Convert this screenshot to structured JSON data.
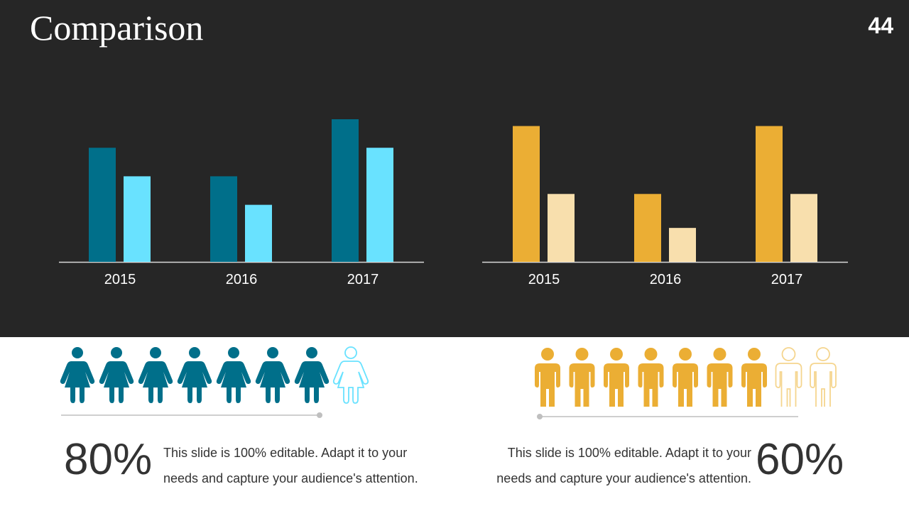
{
  "slide": {
    "title": "Comparison",
    "page_number": "44"
  },
  "chart_data": [
    {
      "type": "bar",
      "categories": [
        "2015",
        "2016",
        "2017"
      ],
      "series": [
        {
          "values": [
            4,
            3,
            5
          ]
        },
        {
          "values": [
            3,
            2,
            4
          ]
        }
      ],
      "ylim": [
        0,
        5
      ],
      "colors": [
        "#006f8a",
        "#69e2ff"
      ],
      "grid": false
    },
    {
      "type": "bar",
      "categories": [
        "2015",
        "2016",
        "2017"
      ],
      "series": [
        {
          "values": [
            4,
            2,
            4
          ]
        },
        {
          "values": [
            2,
            1,
            2
          ]
        }
      ],
      "ylim": [
        0,
        4.2
      ],
      "colors": [
        "#ebae34",
        "#f8dfad"
      ],
      "grid": false
    }
  ],
  "left_stat": {
    "icon": "female-person-icon",
    "total": 8,
    "filled": 7,
    "color": "#006f8a",
    "outline_color": "#69e2ff",
    "percent": "80%",
    "text_line1": "This slide is 100% editable. Adapt it to your",
    "text_line2": "needs and capture your audience's attention."
  },
  "right_stat": {
    "icon": "male-person-icon",
    "total": 9,
    "filled": 7,
    "color": "#ebae34",
    "outline_color": "#f5d58e",
    "percent": "60%",
    "text_line1": "This slide is 100% editable. Adapt it to your",
    "text_line2": "needs and capture your audience's attention."
  }
}
